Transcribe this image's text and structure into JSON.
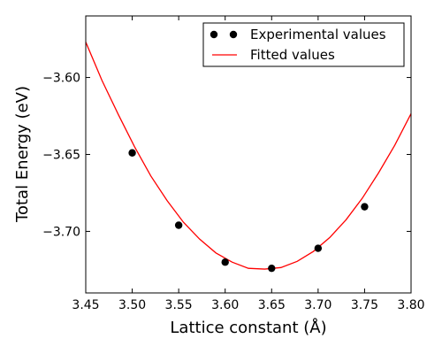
{
  "chart_data": {
    "type": "scatter",
    "xlabel": "Lattice constant (Å)",
    "ylabel": "Total Energy (eV)",
    "xlim": [
      3.45,
      3.8
    ],
    "ylim": [
      -3.74,
      -3.56
    ],
    "grid": false,
    "legend_position": "top-right",
    "x_ticks": [
      3.45,
      3.5,
      3.55,
      3.6,
      3.65,
      3.7,
      3.75,
      3.8
    ],
    "x_tick_labels": [
      "3.45",
      "3.50",
      "3.55",
      "3.60",
      "3.65",
      "3.70",
      "3.75",
      "3.80"
    ],
    "y_ticks": [
      -3.6,
      -3.65,
      -3.7
    ],
    "y_tick_labels": [
      "−3.60",
      "−3.65",
      "−3.70"
    ],
    "series": [
      {
        "name": "Experimental values",
        "kind": "scatter",
        "color": "#000000",
        "x": [
          3.5,
          3.55,
          3.6,
          3.65,
          3.7,
          3.75
        ],
        "y": [
          -3.649,
          -3.696,
          -3.72,
          -3.724,
          -3.711,
          -3.684
        ]
      },
      {
        "name": "Fitted values",
        "kind": "line",
        "color": "#ff0000",
        "x": [
          3.45,
          3.4675,
          3.485,
          3.5025,
          3.52,
          3.5375,
          3.555,
          3.5725,
          3.59,
          3.6075,
          3.625,
          3.6425,
          3.66,
          3.6775,
          3.695,
          3.7125,
          3.73,
          3.7475,
          3.765,
          3.7825,
          3.8
        ],
        "y": [
          -3.577,
          -3.602,
          -3.624,
          -3.645,
          -3.664,
          -3.68,
          -3.694,
          -3.705,
          -3.714,
          -3.72,
          -3.724,
          -3.7245,
          -3.7235,
          -3.7195,
          -3.713,
          -3.704,
          -3.6925,
          -3.6785,
          -3.662,
          -3.644,
          -3.6235
        ]
      }
    ]
  }
}
